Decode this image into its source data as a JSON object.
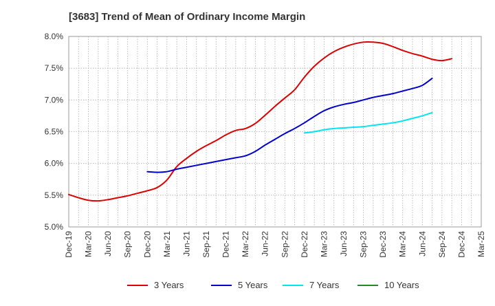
{
  "title": "[3683]  Trend of Mean of Ordinary Income Margin",
  "chart_data": {
    "type": "line",
    "title": "[3683]  Trend of Mean of Ordinary Income Margin",
    "xlabel": "",
    "ylabel": "",
    "ylim": [
      5.0,
      8.0
    ],
    "y_ticks": [
      "5.0%",
      "5.5%",
      "6.0%",
      "6.5%",
      "7.0%",
      "7.5%",
      "8.0%"
    ],
    "x_ticks": [
      "Dec-19",
      "Mar-20",
      "Jun-20",
      "Sep-20",
      "Dec-20",
      "Mar-21",
      "Jun-21",
      "Sep-21",
      "Dec-21",
      "Mar-22",
      "Jun-22",
      "Sep-22",
      "Dec-22",
      "Mar-23",
      "Jun-23",
      "Sep-23",
      "Dec-23",
      "Mar-24",
      "Jun-24",
      "Sep-24",
      "Dec-24",
      "Mar-25"
    ],
    "grid": true,
    "legend_position": "bottom",
    "series": [
      {
        "name": "3 Years",
        "color": "#dd0000",
        "start_index": 0,
        "values": [
          5.51,
          5.46,
          5.42,
          5.41,
          5.43,
          5.46,
          5.49,
          5.53,
          5.57,
          5.62,
          5.74,
          5.95,
          6.08,
          6.19,
          6.28,
          6.36,
          6.45,
          6.52,
          6.55,
          6.63,
          6.76,
          6.9,
          7.03,
          7.16,
          7.36,
          7.53,
          7.66,
          7.76,
          7.83,
          7.88,
          7.91,
          7.91,
          7.89,
          7.84,
          7.78,
          7.73,
          7.69,
          7.64,
          7.62,
          7.65
        ]
      },
      {
        "name": "5 Years",
        "color": "#0000cc",
        "start_index": 8,
        "values": [
          5.87,
          5.86,
          5.87,
          5.91,
          5.94,
          5.97,
          6.0,
          6.03,
          6.06,
          6.09,
          6.12,
          6.19,
          6.29,
          6.38,
          6.47,
          6.55,
          6.64,
          6.74,
          6.83,
          6.89,
          6.93,
          6.96,
          7.0,
          7.04,
          7.07,
          7.1,
          7.14,
          7.18,
          7.23,
          7.34
        ]
      },
      {
        "name": "7 Years",
        "color": "#00e5ee",
        "start_index": 24,
        "values": [
          6.48,
          6.5,
          6.53,
          6.55,
          6.56,
          6.57,
          6.58,
          6.6,
          6.62,
          6.64,
          6.67,
          6.71,
          6.75,
          6.8
        ]
      },
      {
        "name": "10 Years",
        "color": "#228b22",
        "start_index": 0,
        "values": []
      }
    ]
  }
}
